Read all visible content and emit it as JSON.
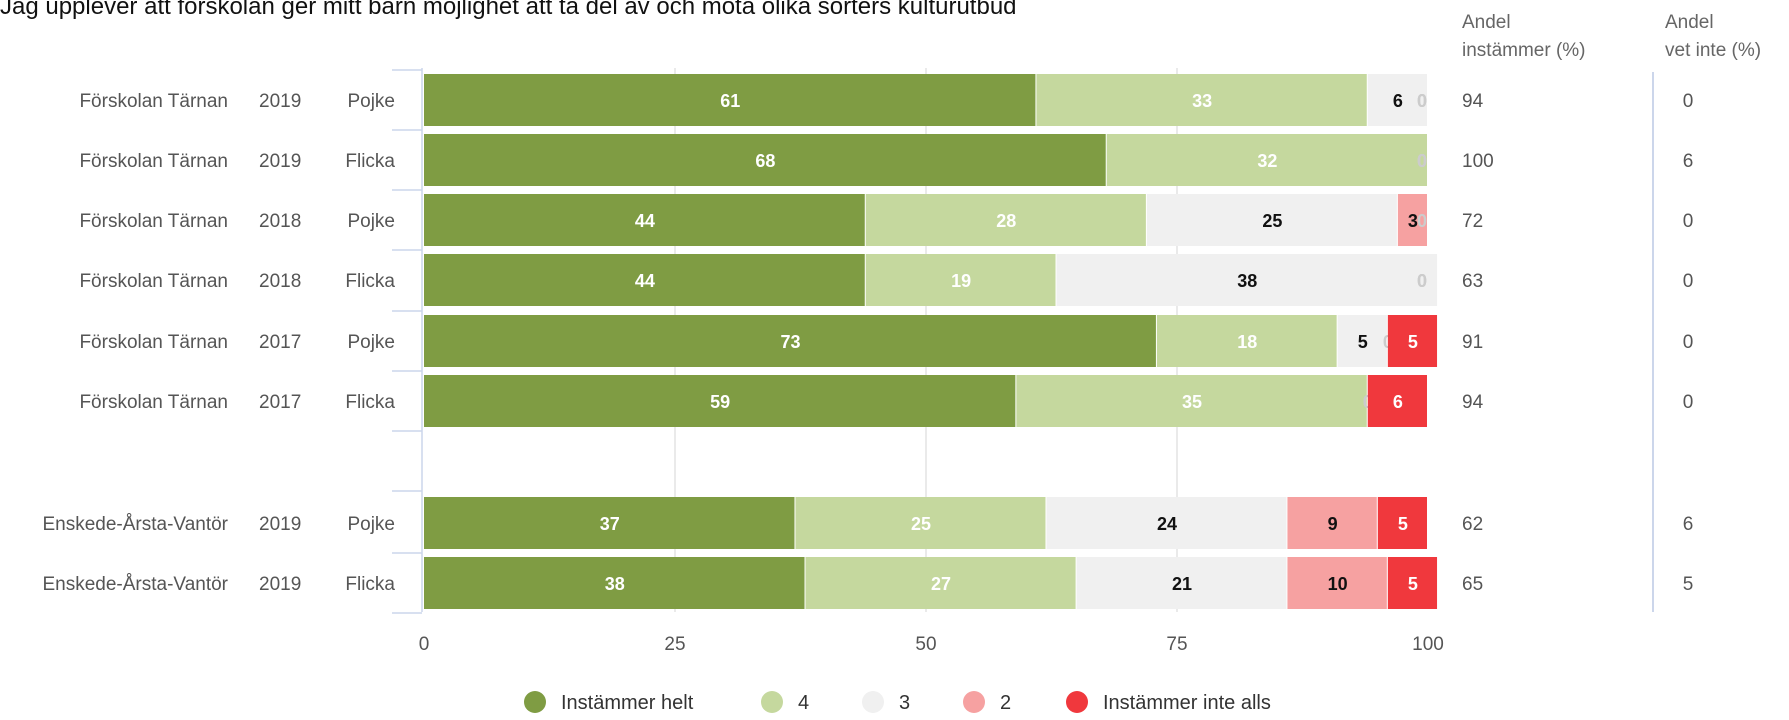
{
  "chart_data": {
    "type": "bar",
    "stacked": true,
    "orientation": "horizontal",
    "title": "Jag upplever att förskolan ger mitt barn möjlighet att ta del av och möta olika sorters kulturutbud",
    "xlim": [
      0,
      100
    ],
    "x_ticks": [
      "0",
      "25",
      "50",
      "75",
      "100"
    ],
    "grid": true,
    "legend_position": "bottom",
    "columns": {
      "agree_header": [
        "Andel",
        "instämmer (%)"
      ],
      "dontknow_header": [
        "Andel",
        "vet inte (%)"
      ]
    },
    "series": [
      {
        "name": "Instämmer helt",
        "color": "#7f9c43",
        "label_color": "#ffffff"
      },
      {
        "name": "4",
        "color": "#c5d89e",
        "label_color": "#ffffff"
      },
      {
        "name": "3",
        "color": "#f0f0f0",
        "label_color": "#111111"
      },
      {
        "name": "2",
        "color": "#f6a1a1",
        "label_color": "#111111"
      },
      {
        "name": "Instämmer inte alls",
        "color": "#f0383d",
        "label_color": "#ffffff"
      }
    ],
    "rows": [
      {
        "unit": "Förskolan Tärnan",
        "year": "2019",
        "gender": "Pojke",
        "values": [
          61,
          33,
          6,
          0,
          0
        ],
        "agree": "94",
        "dont_know": "0"
      },
      {
        "unit": "Förskolan Tärnan",
        "year": "2019",
        "gender": "Flicka",
        "values": [
          68,
          32,
          0,
          0,
          0
        ],
        "agree": "100",
        "dont_know": "6"
      },
      {
        "unit": "Förskolan Tärnan",
        "year": "2018",
        "gender": "Pojke",
        "values": [
          44,
          28,
          25,
          3,
          0
        ],
        "agree": "72",
        "dont_know": "0"
      },
      {
        "unit": "Förskolan Tärnan",
        "year": "2018",
        "gender": "Flicka",
        "values": [
          44,
          19,
          38,
          0,
          0
        ],
        "agree": "63",
        "dont_know": "0"
      },
      {
        "unit": "Förskolan Tärnan",
        "year": "2017",
        "gender": "Pojke",
        "values": [
          73,
          18,
          5,
          0,
          5
        ],
        "agree": "91",
        "dont_know": "0"
      },
      {
        "unit": "Förskolan Tärnan",
        "year": "2017",
        "gender": "Flicka",
        "values": [
          59,
          35,
          0,
          0,
          6
        ],
        "agree": "94",
        "dont_know": "0"
      },
      null,
      {
        "unit": "Enskede-Årsta-Vantör",
        "year": "2019",
        "gender": "Pojke",
        "values": [
          37,
          25,
          24,
          9,
          5
        ],
        "agree": "62",
        "dont_know": "6"
      },
      {
        "unit": "Enskede-Årsta-Vantör",
        "year": "2019",
        "gender": "Flicka",
        "values": [
          38,
          27,
          21,
          10,
          5
        ],
        "agree": "65",
        "dont_know": "5"
      }
    ]
  }
}
